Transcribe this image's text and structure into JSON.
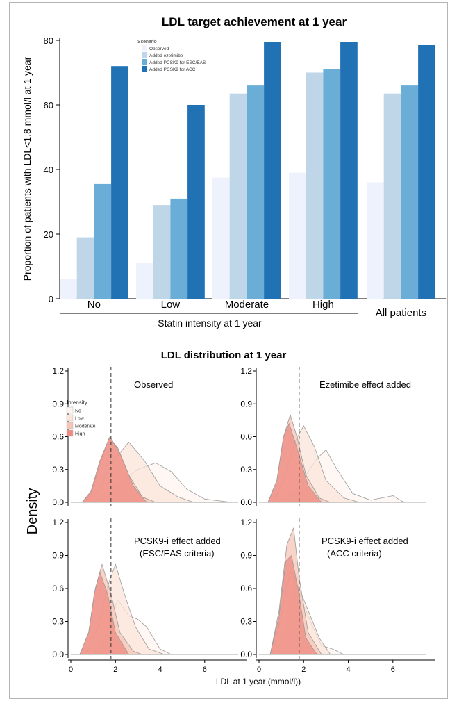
{
  "chart_data": [
    {
      "type": "bar",
      "title": "LDL target achievement at 1 year",
      "ylabel": "Proportion of patients with LDL<1.8 mmol/l at 1 year",
      "xlabel": "Statin intensity at 1 year",
      "ylim": [
        0,
        80
      ],
      "yticks": [
        0,
        20,
        40,
        60,
        80
      ],
      "categories": [
        "No",
        "Low",
        "Moderate",
        "High",
        "All patients"
      ],
      "legend": {
        "title": "Scenario",
        "position": "top-left"
      },
      "series": [
        {
          "name": "Observed",
          "color": "#eef2fc",
          "values": [
            6,
            11,
            37.5,
            39,
            36
          ]
        },
        {
          "name": "Added ezetimibe",
          "color": "#bed6e7",
          "values": [
            19,
            29,
            63.5,
            70,
            63.5
          ]
        },
        {
          "name": "Added PCSK9 for ESC/EAS",
          "color": "#6aaed8",
          "values": [
            35.5,
            31,
            66,
            71,
            66
          ]
        },
        {
          "name": "Added PCSK9 for ACC",
          "color": "#2171b5",
          "values": [
            72,
            60,
            79.5,
            79.5,
            78.5
          ]
        }
      ]
    },
    {
      "type": "area",
      "title": "LDL distribution at 1 year",
      "ylabel": "Density",
      "xlabel": "LDL at 1 year (mmol/l))",
      "xlim": [
        0,
        7.5
      ],
      "ylim": [
        0,
        1.2
      ],
      "xticks": [
        0,
        2,
        4,
        6
      ],
      "yticks": [
        "0.0",
        "0.3",
        "0.6",
        "0.9",
        "1.2"
      ],
      "reference_line_x": 1.8,
      "legend": {
        "title": "Intensity",
        "position": "top-left",
        "items": [
          {
            "name": "No",
            "color": "#fdf4ef"
          },
          {
            "name": "Low",
            "color": "#fbe4d9"
          },
          {
            "name": "Moderate",
            "color": "#f6c4b6"
          },
          {
            "name": "High",
            "color": "#ef8a80"
          }
        ]
      },
      "panels": [
        {
          "title": "Observed",
          "series": {
            "No": [
              [
                0.8,
                0
              ],
              [
                1.5,
                0.08
              ],
              [
                2.2,
                0.18
              ],
              [
                3.0,
                0.3
              ],
              [
                3.8,
                0.36
              ],
              [
                4.5,
                0.28
              ],
              [
                5.2,
                0.12
              ],
              [
                6.0,
                0.03
              ],
              [
                7.2,
                0
              ]
            ],
            "Low": [
              [
                0.6,
                0
              ],
              [
                1.2,
                0.1
              ],
              [
                1.9,
                0.38
              ],
              [
                2.6,
                0.55
              ],
              [
                3.3,
                0.38
              ],
              [
                4.0,
                0.15
              ],
              [
                4.8,
                0.05
              ],
              [
                5.5,
                0
              ]
            ],
            "Moderate": [
              [
                0.5,
                0
              ],
              [
                0.9,
                0.08
              ],
              [
                1.3,
                0.35
              ],
              [
                1.7,
                0.58
              ],
              [
                2.1,
                0.5
              ],
              [
                2.6,
                0.25
              ],
              [
                3.2,
                0.05
              ],
              [
                3.8,
                0
              ]
            ],
            "High": [
              [
                0.5,
                0
              ],
              [
                0.9,
                0.1
              ],
              [
                1.3,
                0.38
              ],
              [
                1.75,
                0.6
              ],
              [
                2.2,
                0.45
              ],
              [
                2.8,
                0.15
              ],
              [
                3.4,
                0
              ]
            ]
          }
        },
        {
          "title": "Ezetimibe effect added",
          "series": {
            "No": [
              [
                0.8,
                0
              ],
              [
                1.5,
                0.1
              ],
              [
                2.1,
                0.25
              ],
              [
                2.6,
                0.4
              ],
              [
                3.0,
                0.48
              ],
              [
                3.5,
                0.3
              ],
              [
                4.2,
                0.08
              ],
              [
                5.0,
                0.02
              ],
              [
                6.0,
                0.06
              ],
              [
                6.5,
                0
              ]
            ],
            "Low": [
              [
                0.6,
                0
              ],
              [
                1.1,
                0.2
              ],
              [
                1.6,
                0.55
              ],
              [
                2.0,
                0.7
              ],
              [
                2.5,
                0.5
              ],
              [
                3.0,
                0.2
              ],
              [
                3.8,
                0.04
              ],
              [
                4.5,
                0
              ]
            ],
            "Moderate": [
              [
                0.4,
                0
              ],
              [
                0.8,
                0.2
              ],
              [
                1.1,
                0.6
              ],
              [
                1.4,
                0.8
              ],
              [
                1.7,
                0.6
              ],
              [
                2.1,
                0.25
              ],
              [
                2.7,
                0.04
              ],
              [
                3.2,
                0
              ]
            ],
            "High": [
              [
                0.4,
                0
              ],
              [
                0.8,
                0.2
              ],
              [
                1.1,
                0.6
              ],
              [
                1.35,
                0.72
              ],
              [
                1.7,
                0.5
              ],
              [
                2.2,
                0.15
              ],
              [
                2.8,
                0
              ]
            ]
          }
        },
        {
          "title": "PCSK9-i effect added",
          "subtitle": "(ESC/EAS criteria)",
          "series": {
            "No": [
              [
                1.0,
                0
              ],
              [
                1.6,
                0.2
              ],
              [
                2.1,
                0.5
              ],
              [
                2.6,
                0.35
              ],
              [
                3.0,
                0.32
              ],
              [
                3.4,
                0.25
              ],
              [
                4.0,
                0.05
              ],
              [
                4.5,
                0
              ]
            ],
            "Low": [
              [
                0.7,
                0
              ],
              [
                1.2,
                0.25
              ],
              [
                1.7,
                0.65
              ],
              [
                2.0,
                0.82
              ],
              [
                2.4,
                0.55
              ],
              [
                2.9,
                0.25
              ],
              [
                3.5,
                0.05
              ],
              [
                4.2,
                0
              ]
            ],
            "Moderate": [
              [
                0.4,
                0
              ],
              [
                0.8,
                0.2
              ],
              [
                1.1,
                0.6
              ],
              [
                1.4,
                0.82
              ],
              [
                1.8,
                0.55
              ],
              [
                2.2,
                0.2
              ],
              [
                2.8,
                0.03
              ],
              [
                3.2,
                0
              ]
            ],
            "High": [
              [
                0.4,
                0
              ],
              [
                0.8,
                0.2
              ],
              [
                1.05,
                0.55
              ],
              [
                1.3,
                0.75
              ],
              [
                1.65,
                0.55
              ],
              [
                2.0,
                0.2
              ],
              [
                2.6,
                0
              ]
            ]
          }
        },
        {
          "title": "PCSK9-i effect added",
          "subtitle": "(ACC criteria)",
          "series": {
            "No": [
              [
                0.8,
                0
              ],
              [
                1.2,
                0.3
              ],
              [
                1.6,
                0.7
              ],
              [
                1.9,
                0.5
              ],
              [
                2.3,
                0.3
              ],
              [
                2.8,
                0.08
              ],
              [
                3.3,
                0.05
              ],
              [
                3.8,
                0
              ]
            ],
            "Low": [
              [
                0.6,
                0
              ],
              [
                1.0,
                0.35
              ],
              [
                1.4,
                0.75
              ],
              [
                1.8,
                0.6
              ],
              [
                2.2,
                0.4
              ],
              [
                2.7,
                0.15
              ],
              [
                3.2,
                0
              ]
            ],
            "Moderate": [
              [
                0.5,
                0
              ],
              [
                0.9,
                0.4
              ],
              [
                1.25,
                1.0
              ],
              [
                1.55,
                1.15
              ],
              [
                1.8,
                0.7
              ],
              [
                2.2,
                0.2
              ],
              [
                2.8,
                0
              ]
            ],
            "High": [
              [
                0.5,
                0
              ],
              [
                0.9,
                0.35
              ],
              [
                1.2,
                0.85
              ],
              [
                1.45,
                0.9
              ],
              [
                1.75,
                0.6
              ],
              [
                2.1,
                0.15
              ],
              [
                2.6,
                0
              ]
            ]
          }
        }
      ]
    }
  ]
}
